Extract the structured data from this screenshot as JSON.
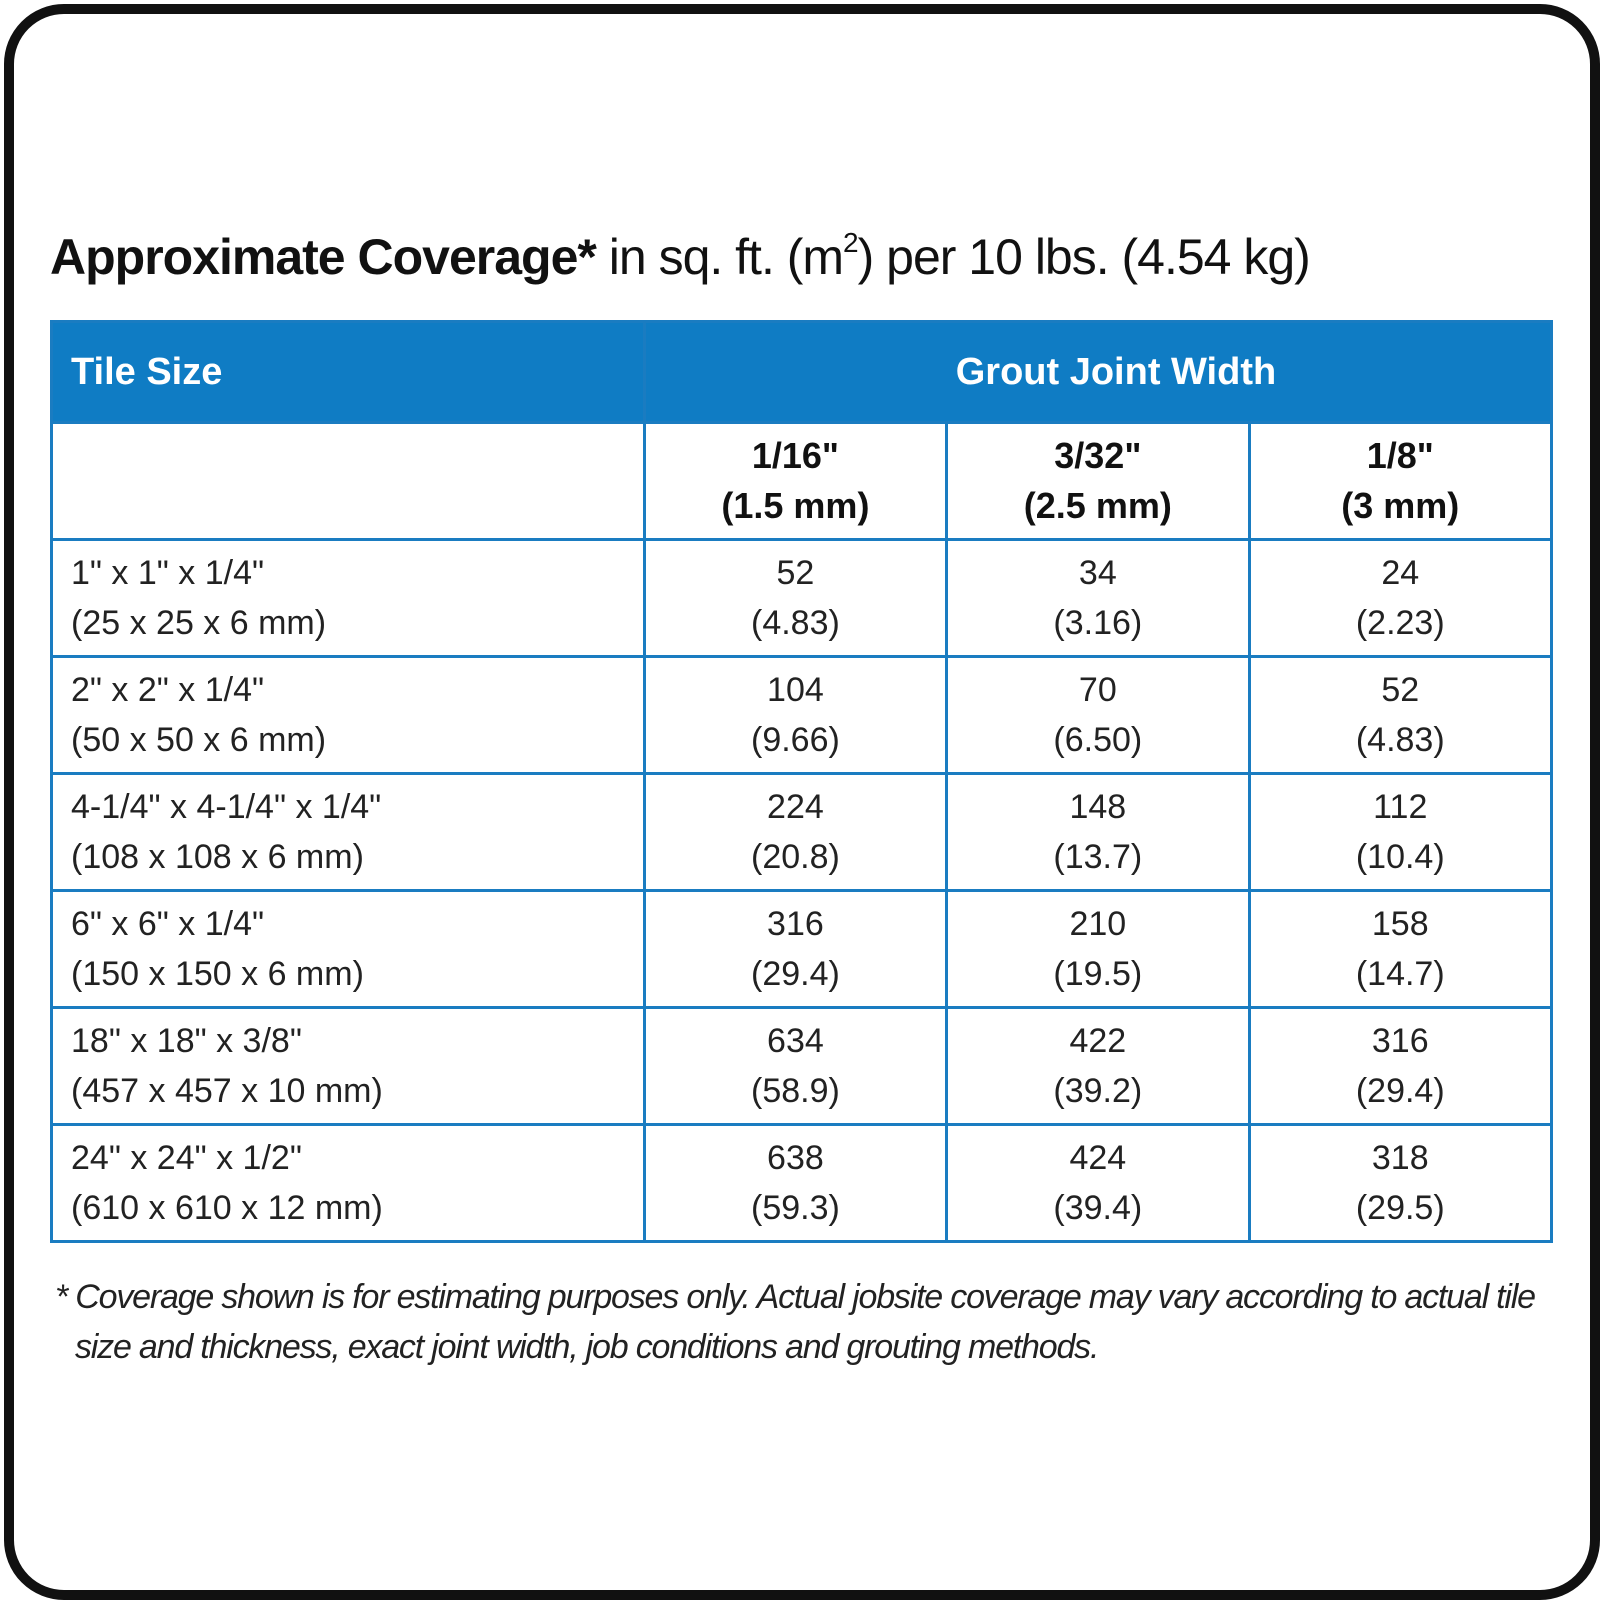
{
  "title": {
    "bold": "Approximate Coverage*",
    "pre": "in sq. ft. (m",
    "sup": "2",
    "post": ") per 10 lbs. (4.54 kg)"
  },
  "table": {
    "header": [
      "Tile Size",
      "Grout Joint Width"
    ],
    "columns": [
      [
        "1/16\"",
        "(1.5 mm)"
      ],
      [
        "3/32\"",
        "(2.5 mm)"
      ],
      [
        "1/8\"",
        "(3 mm)"
      ]
    ],
    "rows": [
      {
        "size": [
          "1\" x 1\" x 1/4\"",
          "(25 x 25 x 6 mm)"
        ],
        "cells": [
          [
            "52",
            "(4.83)"
          ],
          [
            "34",
            "(3.16)"
          ],
          [
            "24",
            "(2.23)"
          ]
        ]
      },
      {
        "size": [
          "2\" x 2\" x 1/4\"",
          "(50 x 50 x 6 mm)"
        ],
        "cells": [
          [
            "104",
            "(9.66)"
          ],
          [
            "70",
            "(6.50)"
          ],
          [
            "52",
            "(4.83)"
          ]
        ]
      },
      {
        "size": [
          "4-1/4\" x 4-1/4\" x 1/4\"",
          "(108 x 108 x 6 mm)"
        ],
        "cells": [
          [
            "224",
            "(20.8)"
          ],
          [
            "148",
            "(13.7)"
          ],
          [
            "112",
            "(10.4)"
          ]
        ]
      },
      {
        "size": [
          "6\" x 6\" x 1/4\"",
          "(150 x 150 x 6 mm)"
        ],
        "cells": [
          [
            "316",
            "(29.4)"
          ],
          [
            "210",
            "(19.5)"
          ],
          [
            "158",
            "(14.7)"
          ]
        ]
      },
      {
        "size": [
          "18\" x 18\" x 3/8\"",
          "(457 x 457 x 10 mm)"
        ],
        "cells": [
          [
            "634",
            "(58.9)"
          ],
          [
            "422",
            "(39.2)"
          ],
          [
            "316",
            "(29.4)"
          ]
        ]
      },
      {
        "size": [
          "24\" x 24\" x 1/2\"",
          "(610 x 610 x 12 mm)"
        ],
        "cells": [
          [
            "638",
            "(59.3)"
          ],
          [
            "424",
            "(39.4)"
          ],
          [
            "318",
            "(29.5)"
          ]
        ]
      }
    ]
  },
  "footnote": [
    "* Coverage shown is for estimating purposes only. Actual jobsite coverage may vary according to actual tile",
    "size and thickness, exact joint width, job conditions and grouting methods."
  ]
}
